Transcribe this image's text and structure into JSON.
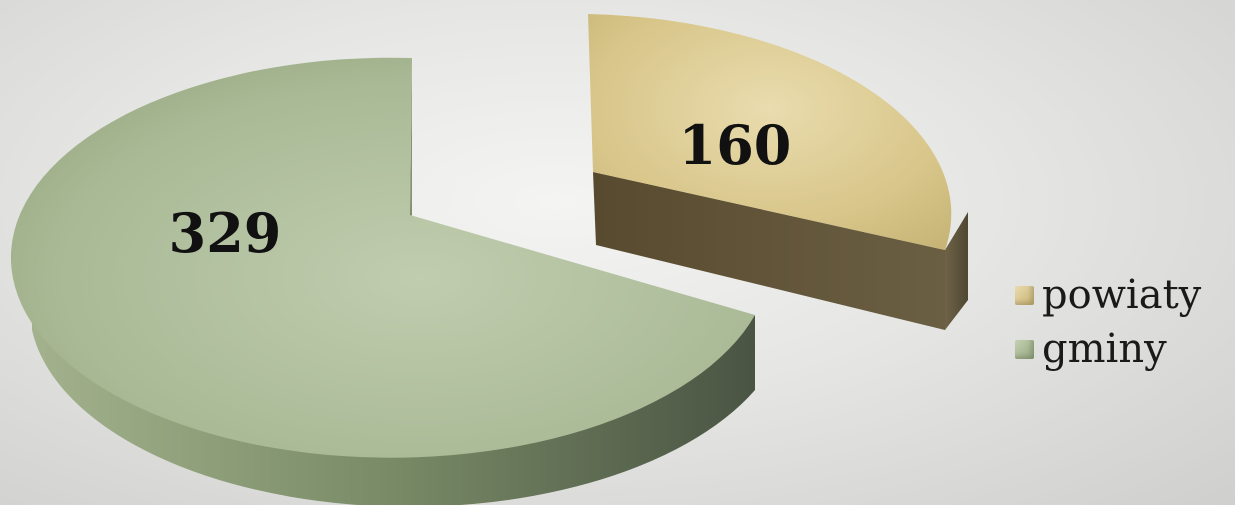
{
  "chart_data": {
    "type": "pie",
    "three_d": true,
    "exploded": true,
    "categories": [
      "powiaty",
      "gminy"
    ],
    "values": [
      160,
      329
    ],
    "data_labels": [
      "160",
      "329"
    ],
    "legend_position": "right",
    "colors": {
      "powiaty_top": "#d9c98e",
      "powiaty_side": "#5e5339",
      "gminy_top": "#a6b690",
      "gminy_side": "#5c6a50"
    }
  }
}
